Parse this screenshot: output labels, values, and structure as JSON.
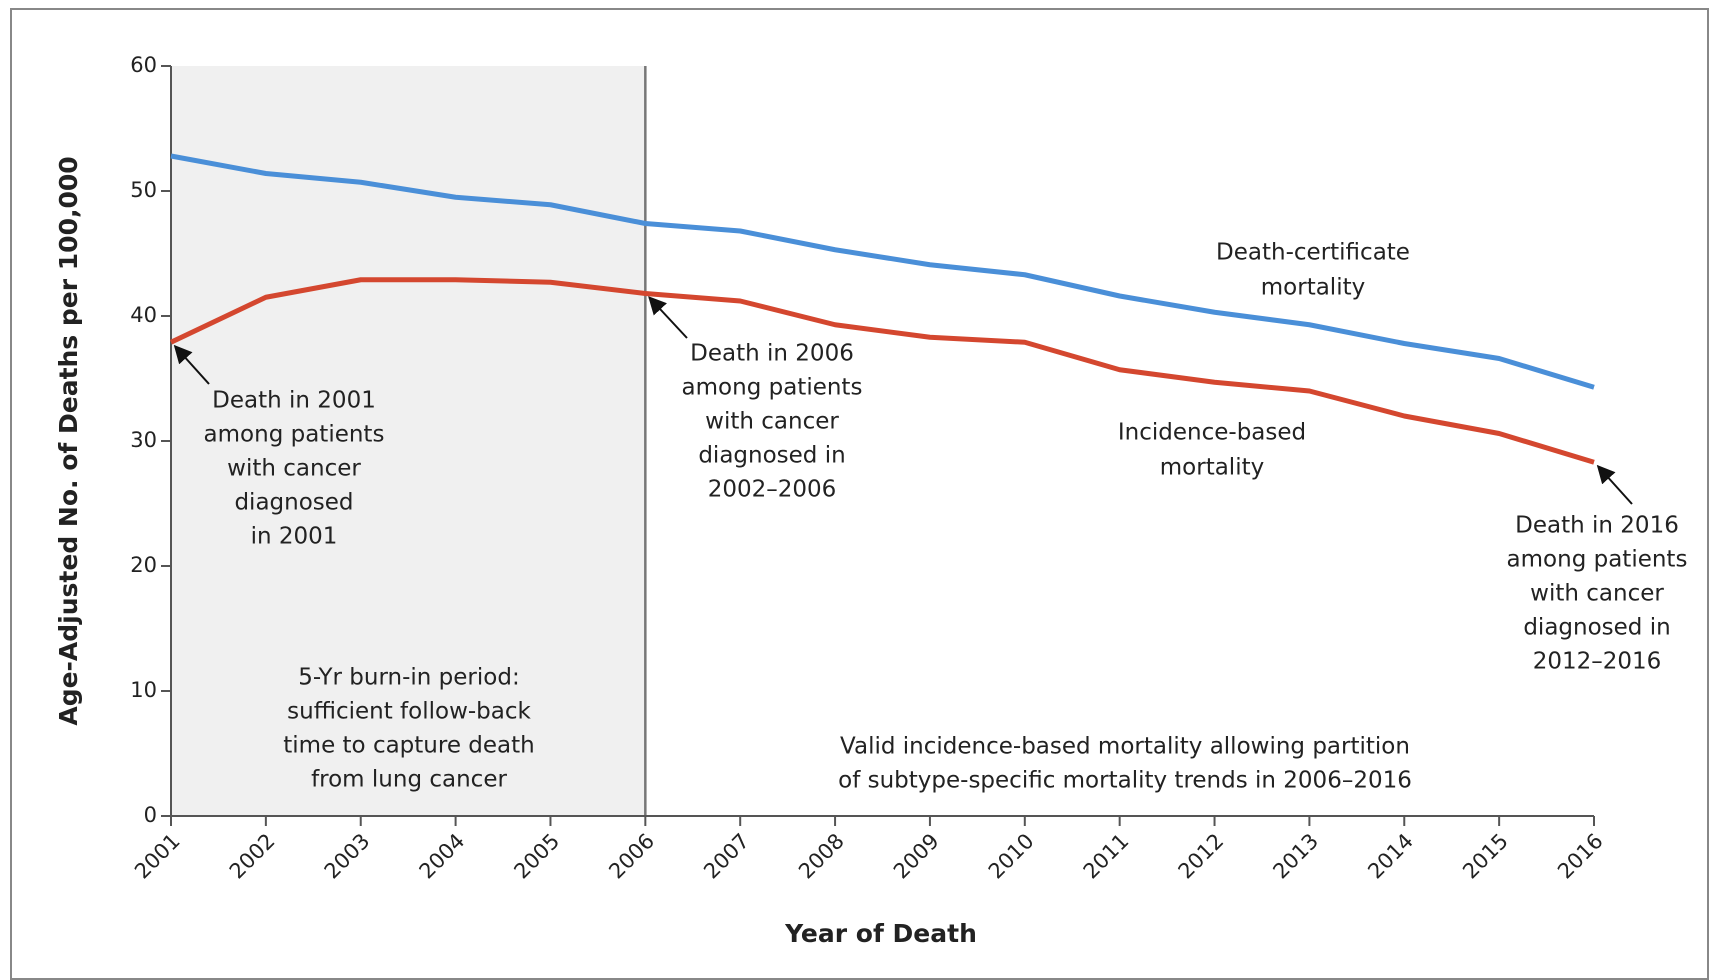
{
  "chart_data": {
    "type": "line",
    "x_label": "Year of Death",
    "y_label": "Age-Adjusted No. of Deaths per 100,000",
    "x": [
      2001,
      2002,
      2003,
      2004,
      2005,
      2006,
      2007,
      2008,
      2009,
      2010,
      2011,
      2012,
      2013,
      2014,
      2015,
      2016
    ],
    "series": [
      {
        "name": [
          "Death-certificate",
          "mortality"
        ],
        "color": "#4a8fd8",
        "values": [
          52.8,
          51.4,
          50.7,
          49.5,
          48.9,
          47.4,
          46.8,
          45.3,
          44.1,
          43.3,
          41.6,
          40.3,
          39.3,
          37.8,
          36.6,
          34.3
        ]
      },
      {
        "name": [
          "Incidence-based",
          "mortality"
        ],
        "color": "#d4472f",
        "values": [
          37.9,
          41.5,
          42.9,
          42.9,
          42.7,
          41.8,
          41.2,
          39.3,
          38.3,
          37.9,
          35.7,
          34.7,
          34.0,
          32.0,
          30.6,
          28.3
        ]
      }
    ],
    "xlim": [
      2001,
      2016
    ],
    "ylim": [
      0,
      60
    ],
    "xticks": [
      2001,
      2002,
      2003,
      2004,
      2005,
      2006,
      2007,
      2008,
      2009,
      2010,
      2011,
      2012,
      2013,
      2014,
      2015,
      2016
    ],
    "yticks": [
      0,
      10,
      20,
      30,
      40,
      50,
      60
    ],
    "shade_range": [
      2001,
      2006
    ],
    "annotations": [
      {
        "lines": [
          "Death in 2001",
          "among patients",
          "with cancer",
          "diagnosed",
          "in 2001"
        ]
      },
      {
        "lines": [
          "Death in 2006",
          "among patients",
          "with cancer",
          "diagnosed in",
          "2002–2006"
        ]
      },
      {
        "lines": [
          "Death in 2016",
          "among patients",
          "with cancer",
          "diagnosed in",
          "2012–2016"
        ]
      },
      {
        "lines": [
          "5-Yr burn-in period:",
          "sufficient follow-back",
          "time to capture death",
          "from lung cancer"
        ]
      },
      {
        "lines": [
          "Valid incidence-based mortality allowing partition",
          "of subtype-specific mortality trends in 2006–2016"
        ]
      }
    ]
  }
}
